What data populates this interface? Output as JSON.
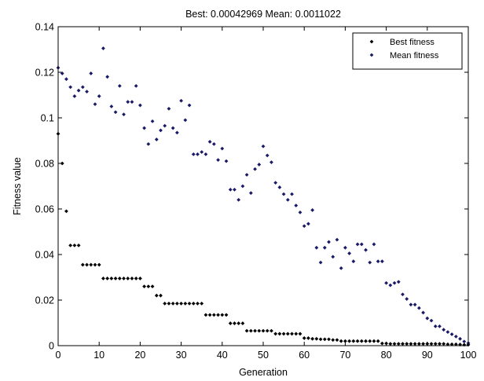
{
  "chart_data": {
    "type": "scatter",
    "title": "Best: 0.00042969 Mean: 0.0011022",
    "xlabel": "Generation",
    "ylabel": "Fitness value",
    "xlim": [
      0,
      100
    ],
    "ylim": [
      0,
      0.14
    ],
    "x_ticks": [
      "0",
      "10",
      "20",
      "30",
      "40",
      "50",
      "60",
      "70",
      "80",
      "90",
      "100"
    ],
    "y_ticks": [
      "0",
      "0.02",
      "0.04",
      "0.06",
      "0.08",
      "0.1",
      "0.12",
      "0.14"
    ],
    "grid": false,
    "legend_position": "top-right",
    "series": [
      {
        "name": "Best fitness",
        "color": "#000000",
        "marker": "diamond",
        "points": [
          [
            0,
            0.093
          ],
          [
            1,
            0.08
          ],
          [
            2,
            0.059
          ],
          [
            3,
            0.044
          ],
          [
            4,
            0.044
          ],
          [
            5,
            0.044
          ],
          [
            6,
            0.0355
          ],
          [
            7,
            0.0355
          ],
          [
            8,
            0.0355
          ],
          [
            9,
            0.0355
          ],
          [
            10,
            0.0355
          ],
          [
            11,
            0.0295
          ],
          [
            12,
            0.0295
          ],
          [
            13,
            0.0295
          ],
          [
            14,
            0.0295
          ],
          [
            15,
            0.0295
          ],
          [
            16,
            0.0295
          ],
          [
            17,
            0.0295
          ],
          [
            18,
            0.0295
          ],
          [
            19,
            0.0295
          ],
          [
            20,
            0.0295
          ],
          [
            21,
            0.026
          ],
          [
            22,
            0.026
          ],
          [
            23,
            0.026
          ],
          [
            24,
            0.022
          ],
          [
            25,
            0.022
          ],
          [
            26,
            0.0185
          ],
          [
            27,
            0.0185
          ],
          [
            28,
            0.0185
          ],
          [
            29,
            0.0185
          ],
          [
            30,
            0.0185
          ],
          [
            31,
            0.0185
          ],
          [
            32,
            0.0185
          ],
          [
            33,
            0.0185
          ],
          [
            34,
            0.0185
          ],
          [
            35,
            0.0185
          ],
          [
            36,
            0.0135
          ],
          [
            37,
            0.0135
          ],
          [
            38,
            0.0135
          ],
          [
            39,
            0.0135
          ],
          [
            40,
            0.0135
          ],
          [
            41,
            0.0135
          ],
          [
            42,
            0.0098
          ],
          [
            43,
            0.0098
          ],
          [
            44,
            0.0098
          ],
          [
            45,
            0.0098
          ],
          [
            46,
            0.0065
          ],
          [
            47,
            0.0065
          ],
          [
            48,
            0.0065
          ],
          [
            49,
            0.0065
          ],
          [
            50,
            0.0065
          ],
          [
            51,
            0.0065
          ],
          [
            52,
            0.0065
          ],
          [
            53,
            0.0052
          ],
          [
            54,
            0.0052
          ],
          [
            55,
            0.0052
          ],
          [
            56,
            0.0052
          ],
          [
            57,
            0.0052
          ],
          [
            58,
            0.0052
          ],
          [
            59,
            0.0052
          ],
          [
            60,
            0.0033
          ],
          [
            61,
            0.0033
          ],
          [
            62,
            0.003
          ],
          [
            63,
            0.003
          ],
          [
            64,
            0.0028
          ],
          [
            65,
            0.0028
          ],
          [
            66,
            0.0028
          ],
          [
            67,
            0.0025
          ],
          [
            68,
            0.0025
          ],
          [
            69,
            0.002
          ],
          [
            70,
            0.002
          ],
          [
            71,
            0.002
          ],
          [
            72,
            0.002
          ],
          [
            73,
            0.002
          ],
          [
            74,
            0.002
          ],
          [
            75,
            0.002
          ],
          [
            76,
            0.002
          ],
          [
            77,
            0.002
          ],
          [
            78,
            0.002
          ],
          [
            79,
            0.001
          ],
          [
            80,
            0.001
          ],
          [
            81,
            0.0008
          ],
          [
            82,
            0.0008
          ],
          [
            83,
            0.0008
          ],
          [
            84,
            0.0008
          ],
          [
            85,
            0.0008
          ],
          [
            86,
            0.0008
          ],
          [
            87,
            0.0008
          ],
          [
            88,
            0.0008
          ],
          [
            89,
            0.0008
          ],
          [
            90,
            0.0008
          ],
          [
            91,
            0.0008
          ],
          [
            92,
            0.0008
          ],
          [
            93,
            0.0008
          ],
          [
            94,
            0.0008
          ],
          [
            95,
            0.0006
          ],
          [
            96,
            0.0006
          ],
          [
            97,
            0.0006
          ],
          [
            98,
            0.0005
          ],
          [
            99,
            0.0004
          ],
          [
            100,
            0.0004
          ]
        ]
      },
      {
        "name": "Mean fitness",
        "color": "#1a1a66",
        "marker": "diamond",
        "points": [
          [
            0,
            0.122
          ],
          [
            1,
            0.1195
          ],
          [
            2,
            0.117
          ],
          [
            3,
            0.1135
          ],
          [
            4,
            0.1095
          ],
          [
            5,
            0.112
          ],
          [
            6,
            0.1135
          ],
          [
            7,
            0.1115
          ],
          [
            8,
            0.1195
          ],
          [
            9,
            0.106
          ],
          [
            10,
            0.1095
          ],
          [
            11,
            0.1305
          ],
          [
            12,
            0.118
          ],
          [
            13,
            0.105
          ],
          [
            14,
            0.1025
          ],
          [
            15,
            0.114
          ],
          [
            16,
            0.1015
          ],
          [
            17,
            0.107
          ],
          [
            18,
            0.107
          ],
          [
            19,
            0.114
          ],
          [
            20,
            0.1055
          ],
          [
            21,
            0.0955
          ],
          [
            22,
            0.0885
          ],
          [
            23,
            0.0985
          ],
          [
            24,
            0.0905
          ],
          [
            25,
            0.0945
          ],
          [
            26,
            0.0965
          ],
          [
            27,
            0.104
          ],
          [
            28,
            0.0955
          ],
          [
            29,
            0.0935
          ],
          [
            30,
            0.1075
          ],
          [
            31,
            0.099
          ],
          [
            32,
            0.1055
          ],
          [
            33,
            0.084
          ],
          [
            34,
            0.084
          ],
          [
            35,
            0.085
          ],
          [
            36,
            0.084
          ],
          [
            37,
            0.0895
          ],
          [
            38,
            0.0885
          ],
          [
            39,
            0.0815
          ],
          [
            40,
            0.0865
          ],
          [
            41,
            0.081
          ],
          [
            42,
            0.0685
          ],
          [
            43,
            0.0685
          ],
          [
            44,
            0.064
          ],
          [
            45,
            0.07
          ],
          [
            46,
            0.075
          ],
          [
            47,
            0.067
          ],
          [
            48,
            0.0775
          ],
          [
            49,
            0.0795
          ],
          [
            50,
            0.0875
          ],
          [
            51,
            0.0835
          ],
          [
            52,
            0.0805
          ],
          [
            53,
            0.0715
          ],
          [
            54,
            0.0695
          ],
          [
            55,
            0.0665
          ],
          [
            56,
            0.064
          ],
          [
            57,
            0.0665
          ],
          [
            58,
            0.0615
          ],
          [
            59,
            0.0585
          ],
          [
            60,
            0.0525
          ],
          [
            61,
            0.0535
          ],
          [
            62,
            0.0595
          ],
          [
            63,
            0.043
          ],
          [
            64,
            0.0365
          ],
          [
            65,
            0.043
          ],
          [
            66,
            0.0455
          ],
          [
            67,
            0.039
          ],
          [
            68,
            0.0465
          ],
          [
            69,
            0.034
          ],
          [
            70,
            0.043
          ],
          [
            71,
            0.0405
          ],
          [
            72,
            0.037
          ],
          [
            73,
            0.0445
          ],
          [
            74,
            0.0445
          ],
          [
            75,
            0.042
          ],
          [
            76,
            0.0365
          ],
          [
            77,
            0.0445
          ],
          [
            78,
            0.037
          ],
          [
            79,
            0.037
          ],
          [
            80,
            0.0275
          ],
          [
            81,
            0.0265
          ],
          [
            82,
            0.0275
          ],
          [
            83,
            0.028
          ],
          [
            84,
            0.0225
          ],
          [
            85,
            0.0205
          ],
          [
            86,
            0.018
          ],
          [
            87,
            0.018
          ],
          [
            88,
            0.0165
          ],
          [
            89,
            0.0145
          ],
          [
            90,
            0.012
          ],
          [
            91,
            0.011
          ],
          [
            92,
            0.0085
          ],
          [
            93,
            0.0085
          ],
          [
            94,
            0.007
          ],
          [
            95,
            0.006
          ],
          [
            96,
            0.005
          ],
          [
            97,
            0.004
          ],
          [
            98,
            0.003
          ],
          [
            99,
            0.0018
          ],
          [
            100,
            0.0011
          ]
        ]
      }
    ]
  }
}
